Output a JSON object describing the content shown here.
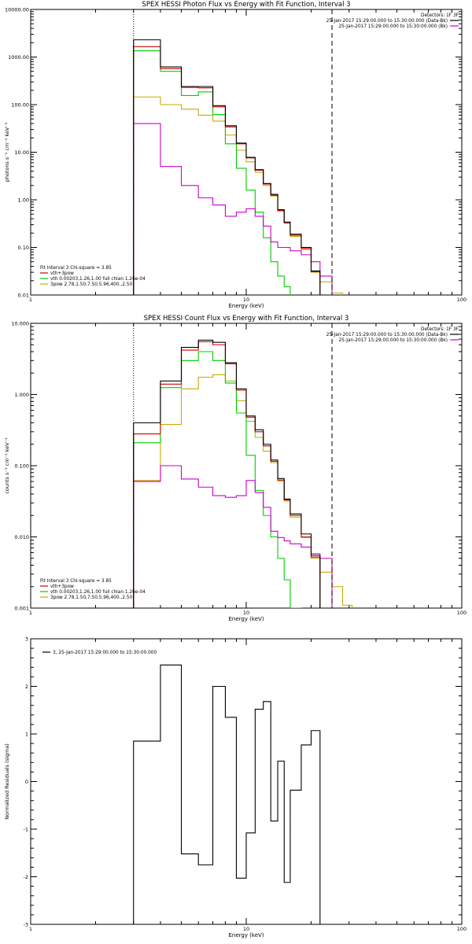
{
  "colors": {
    "data": "#000000",
    "background": "#cc00cc",
    "total": "#cc0000",
    "thermal": "#00cc00",
    "powerlaw": "#ccaa00",
    "axes": "#000000"
  },
  "panels": [
    {
      "title": "SPEX HESSI Photon Flux vs Energy with Fit Function, Interval 3",
      "xlabel": "Energy (keV)",
      "ylabel": "photons s⁻¹ cm⁻² keV⁻¹",
      "xticklabels": [
        "1",
        "10",
        "100"
      ],
      "yticklabels": [
        "0.01",
        "0.10",
        "1.00",
        "10.00",
        "100.00",
        "1000.00",
        "10000.00"
      ],
      "header": {
        "detectors": "Detectors: 1F 3F",
        "line1": "25-Jan-2017 15:29:00.000 to 15:30:00.000 (Data-Bk)",
        "line2": "25-Jan-2017 15:29:00.000 to 15:30:00.000 (Bk)"
      },
      "fitlegend": {
        "title": "Fit Interval 3   Chi-square = 3.85",
        "items": [
          "vth+3pow",
          "vth 0.00203,1.26,1.00  full chian 1.26e-04",
          "3pow 2.78,1.50,7.50,5.96,400.,2.50"
        ]
      }
    },
    {
      "title": "SPEX HESSI Count Flux vs Energy with Fit Function, Interval 3",
      "xlabel": "Energy (keV)",
      "ylabel": "counts s⁻¹ cm⁻² keV⁻¹",
      "xticklabels": [
        "1",
        "10",
        "100"
      ],
      "yticklabels": [
        "0.001",
        "0.010",
        "0.100",
        "1.000",
        "10.000"
      ],
      "header": {
        "detectors": "Detectors: 1F 3F",
        "line1": "25-Jan-2017 15:29:00.000 to 15:30:00.000 (Data-Bk)",
        "line2": "25-Jan-2017 15:29:00.000 to 15:30:00.000 (Bk)"
      },
      "fitlegend": {
        "title": "Fit Interval 3   Chi-square = 3.85",
        "items": [
          "vth+3pow",
          "vth 0.00203,1.26,1.00  full chian 1.26e-04",
          "3pow 2.78,1.50,7.50,5.96,400.,2.50"
        ]
      }
    },
    {
      "xlabel": "Energy (keV)",
      "ylabel": "Normalized Residuals (sigma)",
      "xticklabels": [
        "1",
        "10",
        "100"
      ],
      "yticklabels": [
        "-3",
        "-2",
        "-1",
        "0",
        "1",
        "2",
        "3"
      ],
      "legend": "3, 25-Jan-2017 15:29:00.000 to 15:30:00.000"
    }
  ],
  "chart_data": [
    {
      "type": "line",
      "title": "SPEX HESSI Photon Flux vs Energy with Fit Function, Interval 3",
      "xlabel": "Energy (keV)",
      "ylabel": "photons s⁻¹ cm⁻² keV⁻¹",
      "xscale": "log",
      "yscale": "log",
      "xlim": [
        1,
        100
      ],
      "ylim": [
        0.01,
        10000
      ],
      "fit_range_keV": [
        3,
        25
      ],
      "edges": [
        3,
        4,
        5,
        6,
        7,
        8,
        9,
        10,
        11,
        12,
        13,
        14,
        15,
        16,
        18,
        20,
        22,
        25,
        28,
        31
      ],
      "series": [
        {
          "name": "Data-Bk",
          "color": "#000000",
          "values": [
            2300,
            620,
            240,
            240,
            95,
            36,
            15.5,
            7.8,
            4.3,
            2.2,
            1.3,
            0.62,
            0.34,
            0.19,
            0.1,
            0.032,
            null,
            null,
            null
          ]
        },
        {
          "name": "Bk",
          "color": "#cc00cc",
          "values": [
            40,
            5.0,
            2.0,
            1.1,
            0.78,
            0.45,
            0.55,
            0.65,
            0.45,
            0.28,
            0.13,
            0.1,
            0.1,
            0.085,
            0.07,
            0.05,
            0.025,
            null,
            null
          ]
        },
        {
          "name": "vth+3pow",
          "color": "#cc0000",
          "values": [
            1650,
            570,
            230,
            225,
            90,
            34,
            15,
            7.6,
            4.2,
            2.15,
            1.25,
            0.6,
            0.33,
            0.18,
            0.095,
            0.031,
            null,
            null,
            null
          ]
        },
        {
          "name": "vth 0.00203,1.26,1.00  full chian 1.26e-04",
          "color": "#00cc00",
          "values": [
            1350,
            500,
            155,
            185,
            62,
            15,
            4.6,
            1.6,
            0.55,
            0.16,
            0.05,
            0.025,
            0.015,
            null,
            null,
            null,
            null,
            null,
            null
          ]
        },
        {
          "name": "3pow 2.78,1.50,7.50,5.96,400.,2.50",
          "color": "#ccaa00",
          "values": [
            145,
            100,
            80,
            60,
            45,
            23,
            11,
            6.3,
            3.8,
            2.0,
            1.2,
            0.58,
            0.32,
            0.17,
            0.09,
            0.03,
            0.019,
            0.011,
            null
          ]
        }
      ]
    },
    {
      "type": "line",
      "title": "SPEX HESSI Count Flux vs Energy with Fit Function, Interval 3",
      "xlabel": "Energy (keV)",
      "ylabel": "counts s⁻¹ cm⁻² keV⁻¹",
      "xscale": "log",
      "yscale": "log",
      "xlim": [
        1,
        100
      ],
      "ylim": [
        0.001,
        10
      ],
      "fit_range_keV": [
        3,
        25
      ],
      "edges": [
        3,
        4,
        5,
        6,
        7,
        8,
        9,
        10,
        11,
        12,
        13,
        14,
        15,
        16,
        18,
        20,
        22,
        25,
        28,
        31
      ],
      "series": [
        {
          "name": "Data-Bk",
          "color": "#000000",
          "values": [
            0.4,
            1.55,
            4.6,
            5.8,
            5.4,
            2.8,
            1.2,
            0.5,
            0.32,
            0.2,
            0.12,
            0.066,
            0.034,
            0.021,
            0.011,
            0.0055,
            null,
            null,
            null
          ]
        },
        {
          "name": "Bk",
          "color": "#cc00cc",
          "values": [
            0.06,
            0.1,
            0.065,
            0.05,
            0.038,
            0.036,
            0.038,
            0.062,
            0.042,
            0.026,
            0.012,
            0.0098,
            0.0088,
            0.008,
            0.0072,
            0.0058,
            0.005,
            null,
            null
          ]
        },
        {
          "name": "vth+3pow",
          "color": "#cc0000",
          "values": [
            0.28,
            1.4,
            4.2,
            5.5,
            5.0,
            2.7,
            1.15,
            0.48,
            0.3,
            0.19,
            0.115,
            0.063,
            0.033,
            0.02,
            0.01,
            0.0052,
            null,
            null,
            null
          ]
        },
        {
          "name": "vth 0.00203,1.26,1.00  full chian 1.26e-04",
          "color": "#00cc00",
          "values": [
            0.21,
            1.25,
            3.0,
            4.0,
            3.0,
            1.45,
            0.55,
            0.14,
            0.045,
            0.02,
            0.01,
            0.005,
            0.0025,
            0.001,
            null,
            null,
            null,
            null,
            null
          ]
        },
        {
          "name": "3pow 2.78,1.50,7.50,5.96,400.,2.50",
          "color": "#ccaa00",
          "values": [
            0.062,
            0.38,
            1.2,
            1.75,
            1.9,
            1.55,
            0.82,
            0.42,
            0.25,
            0.16,
            0.11,
            0.061,
            0.032,
            0.019,
            0.0098,
            0.005,
            0.0032,
            0.002,
            0.0011
          ]
        }
      ]
    },
    {
      "type": "line",
      "xlabel": "Energy (keV)",
      "ylabel": "Normalized Residuals (sigma)",
      "xscale": "log",
      "xlim": [
        1,
        100
      ],
      "ylim": [
        -3,
        3
      ],
      "edges": [
        3,
        4,
        5,
        6,
        7,
        8,
        9,
        10,
        11,
        12,
        13,
        14,
        15,
        16,
        18,
        20,
        22,
        25
      ],
      "series": [
        {
          "name": "3, 25-Jan-2017 15:29:00.000 to 15:30:00.000",
          "color": "#000000",
          "values": [
            0.85,
            2.45,
            -1.52,
            -1.75,
            2.0,
            1.35,
            -2.03,
            -1.08,
            1.52,
            1.68,
            -0.83,
            0.43,
            -2.12,
            -0.18,
            0.77,
            1.07,
            null
          ]
        }
      ]
    }
  ]
}
